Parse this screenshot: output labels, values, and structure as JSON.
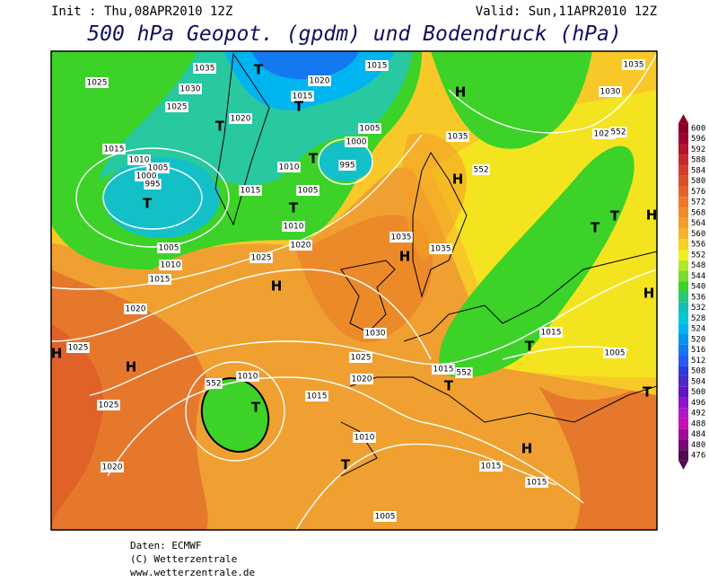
{
  "header": {
    "init": "Init : Thu,08APR2010 12Z",
    "valid": "Valid: Sun,11APR2010 12Z",
    "title": "500 hPa Geopot. (gpdm) und Bodendruck (hPa)"
  },
  "colorbar": {
    "levels": [
      600,
      596,
      592,
      588,
      584,
      580,
      576,
      572,
      568,
      564,
      560,
      556,
      552,
      548,
      544,
      540,
      536,
      532,
      528,
      524,
      520,
      516,
      512,
      508,
      504,
      500,
      496,
      492,
      488,
      484,
      480,
      476
    ],
    "colors": [
      "#8c0028",
      "#a0002c",
      "#b4142c",
      "#c8282c",
      "#d23c2c",
      "#dc5028",
      "#e46428",
      "#ec7828",
      "#f08c28",
      "#f4a028",
      "#f8b428",
      "#f8d020",
      "#f0f020",
      "#b4e628",
      "#78dc28",
      "#3cd228",
      "#28c878",
      "#14c0b4",
      "#00c8d8",
      "#00b4f0",
      "#0096f0",
      "#1478f0",
      "#285af0",
      "#283cdc",
      "#5028c8",
      "#6414c8",
      "#8c14c8",
      "#b414c8",
      "#c80ab4",
      "#a00a96",
      "#780a78",
      "#500a50"
    ]
  },
  "map": {
    "labels": [
      "1035",
      "T",
      "1025",
      "1030",
      "1025",
      "1020",
      "T",
      "1015",
      "T",
      "1020",
      "1015",
      "1035",
      "H",
      "1030",
      "1005",
      "1000",
      "T",
      "995",
      "1010",
      "1015",
      "1010",
      "1005",
      "1000",
      "995",
      "T",
      "1015",
      "1005",
      "T",
      "1010",
      "1020",
      "1005",
      "1010",
      "1015",
      "1025",
      "H",
      "1020",
      "1025",
      "H",
      "H",
      "1035",
      "H",
      "1035",
      "1030",
      "1025",
      "1020",
      "1015",
      "1010",
      "T",
      "552",
      "1025",
      "1020",
      "1010",
      "T",
      "1015",
      "1015",
      "H",
      "1005",
      "1015",
      "T",
      "552",
      "1015",
      "T",
      "1005",
      "T",
      "T",
      "T",
      "H",
      "H",
      "1025",
      "552",
      "552",
      "H",
      "1035"
    ]
  },
  "footer": {
    "lines": [
      "Daten: ECMWF",
      "(C) Wetterzentrale",
      "www.wetterzentrale.de"
    ]
  }
}
